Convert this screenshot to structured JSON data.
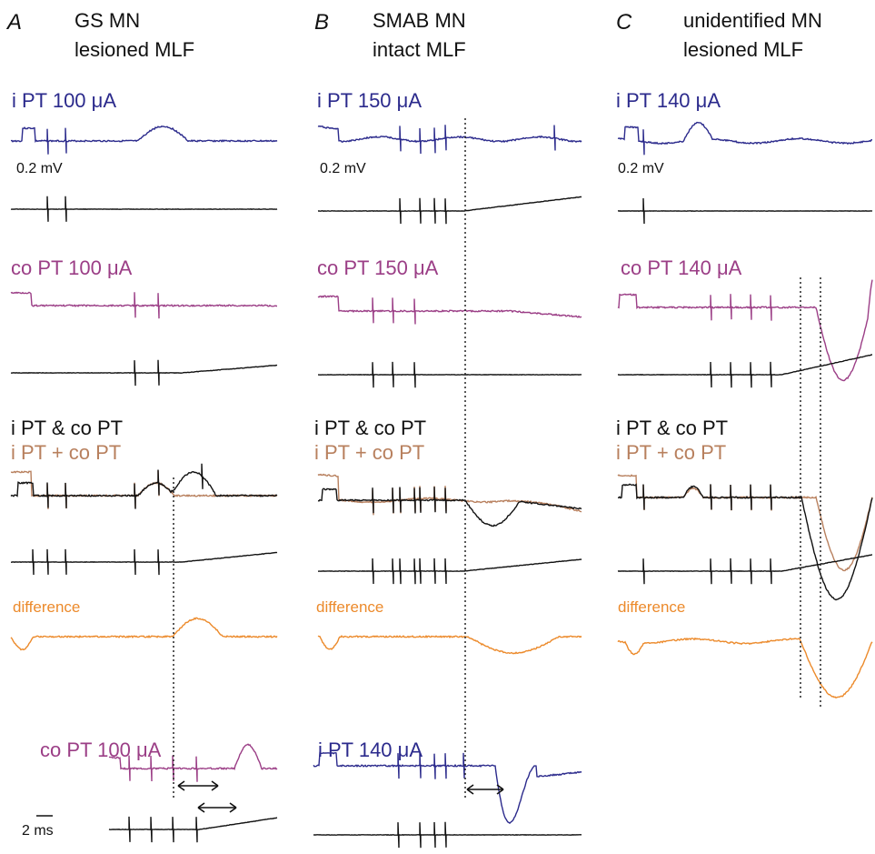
{
  "colors": {
    "blue": "#2b2a8c",
    "magenta": "#9b3e86",
    "black": "#111111",
    "brown": "#b8805e",
    "orange": "#ec8a2b"
  },
  "panels": {
    "A": {
      "letter": "A",
      "title1": "GS MN",
      "title2": "lesioned MLF",
      "ipt": "i PT 100 μA",
      "ipt_scale": "0.2 mV",
      "copt": "co PT 100 μA",
      "both1": "i PT & co PT",
      "both2": "i PT + co PT",
      "difference": "difference",
      "bottom": "co PT 100 μA",
      "time_scale": "2 ms"
    },
    "B": {
      "letter": "B",
      "title1": "SMAB MN",
      "title2": "intact MLF",
      "ipt": "i PT 150 μA",
      "ipt_scale": "0.2 mV",
      "copt": "co PT 150 μA",
      "both1": "i PT & co PT",
      "both2": "i PT + co PT",
      "difference": "difference",
      "bottom": "i PT 140 μA"
    },
    "C": {
      "letter": "C",
      "title1": "unidentified MN",
      "title2": "lesioned MLF",
      "ipt": "i PT 140 μA",
      "ipt_scale": "0.2 mV",
      "copt": "co PT 140 μA",
      "both1": "i PT & co PT",
      "both2": "i PT + co PT",
      "difference": "difference"
    }
  }
}
